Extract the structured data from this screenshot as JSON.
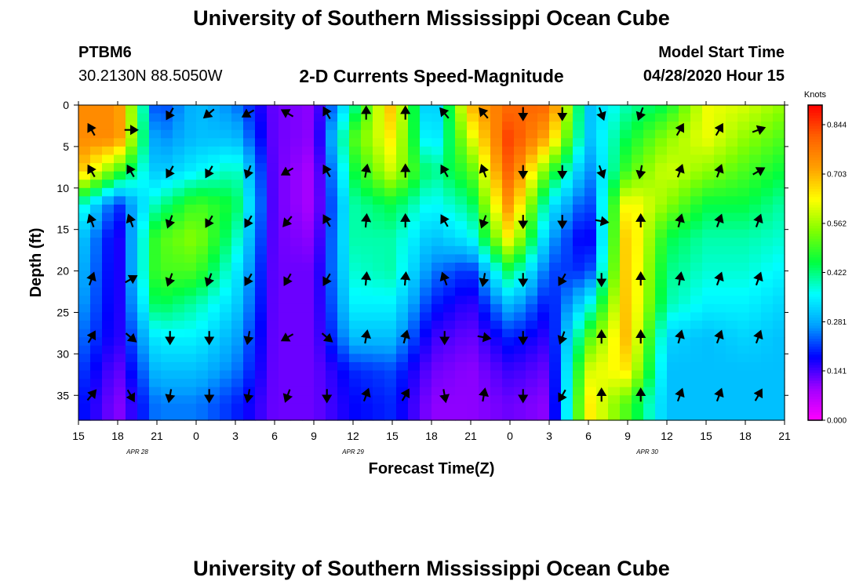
{
  "header": {
    "title": "University of Southern Mississippi Ocean Cube",
    "station": "PTBM6",
    "location": "30.2130N 88.5050W",
    "plot_title": "2-D Currents Speed-Magnitude",
    "model_start_label": "Model Start Time",
    "model_start_value": "04/28/2020 Hour 15"
  },
  "footer": {
    "title": "University of Southern Mississippi Ocean Cube"
  },
  "colorbar": {
    "unit": "Knots",
    "stops": [
      "#ff00ff",
      "#a000ff",
      "#0000ff",
      "#00a0ff",
      "#00ffff",
      "#00ff40",
      "#80ff00",
      "#ffff00",
      "#ffa000",
      "#ff6000",
      "#ff0000"
    ],
    "tick_labels": [
      "0.000",
      "0.141",
      "0.281",
      "0.422",
      "0.562",
      "0.703",
      "0.844"
    ],
    "max_value": 0.9
  },
  "chart_data": {
    "type": "heatmap",
    "title": "2-D Currents Speed-Magnitude",
    "xlabel": "Forecast Time(Z)",
    "ylabel": "Depth (ft)",
    "unit": "Knots",
    "x_start_hour": 15,
    "x_end_hour": 69,
    "xlim": [
      15,
      69
    ],
    "ylim": [
      0,
      38
    ],
    "x_tick_labels": [
      "15",
      "18",
      "21",
      "0",
      "3",
      "6",
      "9",
      "12",
      "15",
      "18",
      "21",
      "0",
      "3",
      "6",
      "9",
      "12",
      "15",
      "18",
      "21"
    ],
    "y_ticks": [
      0,
      5,
      10,
      15,
      20,
      25,
      30,
      35
    ],
    "y_tick_labels": [
      "0",
      "5",
      "10",
      "15",
      "20",
      "25",
      "30",
      "35"
    ],
    "date_labels": [
      {
        "text": "APR  28",
        "hour": 19.5
      },
      {
        "text": "APR  29",
        "hour": 36
      },
      {
        "text": "APR  30",
        "hour": 58.5
      }
    ],
    "depths_ft": [
      0,
      4,
      8,
      12,
      16,
      20,
      24,
      28,
      32,
      36
    ],
    "columns": [
      {
        "hour": 15,
        "speed": [
          0.75,
          0.75,
          0.7,
          0.4,
          0.32,
          0.3,
          0.28,
          0.25,
          0.22,
          0.2
        ]
      },
      {
        "hour": 18,
        "speed": [
          0.75,
          0.75,
          0.5,
          0.2,
          0.15,
          0.15,
          0.15,
          0.15,
          0.12,
          0.1
        ]
      },
      {
        "hour": 21,
        "speed": [
          0.2,
          0.25,
          0.3,
          0.4,
          0.5,
          0.5,
          0.45,
          0.35,
          0.3,
          0.25
        ]
      },
      {
        "hour": 24,
        "speed": [
          0.3,
          0.3,
          0.35,
          0.5,
          0.55,
          0.5,
          0.4,
          0.35,
          0.3,
          0.25
        ]
      },
      {
        "hour": 27,
        "speed": [
          0.25,
          0.3,
          0.4,
          0.45,
          0.4,
          0.35,
          0.32,
          0.28,
          0.25,
          0.2
        ]
      },
      {
        "hour": 30,
        "speed": [
          0.12,
          0.12,
          0.12,
          0.12,
          0.12,
          0.12,
          0.12,
          0.12,
          0.12,
          0.12
        ]
      },
      {
        "hour": 33,
        "speed": [
          0.1,
          0.1,
          0.08,
          0.08,
          0.1,
          0.12,
          0.12,
          0.12,
          0.12,
          0.12
        ]
      },
      {
        "hour": 36,
        "speed": [
          0.4,
          0.5,
          0.45,
          0.4,
          0.4,
          0.38,
          0.35,
          0.3,
          0.2,
          0.18
        ]
      },
      {
        "hour": 39,
        "speed": [
          0.7,
          0.65,
          0.6,
          0.45,
          0.4,
          0.4,
          0.35,
          0.3,
          0.22,
          0.2
        ]
      },
      {
        "hour": 42,
        "speed": [
          0.25,
          0.3,
          0.4,
          0.35,
          0.3,
          0.25,
          0.2,
          0.15,
          0.12,
          0.1
        ]
      },
      {
        "hour": 45,
        "speed": [
          0.7,
          0.6,
          0.5,
          0.42,
          0.35,
          0.2,
          0.15,
          0.12,
          0.1,
          0.1
        ]
      },
      {
        "hour": 48,
        "speed": [
          0.8,
          0.85,
          0.82,
          0.75,
          0.65,
          0.45,
          0.3,
          0.2,
          0.15,
          0.12
        ]
      },
      {
        "hour": 51,
        "speed": [
          0.8,
          0.7,
          0.5,
          0.35,
          0.28,
          0.22,
          0.18,
          0.15,
          0.12,
          0.1
        ]
      },
      {
        "hour": 54,
        "speed": [
          0.3,
          0.3,
          0.25,
          0.2,
          0.15,
          0.2,
          0.35,
          0.5,
          0.6,
          0.65
        ]
      },
      {
        "hour": 57,
        "speed": [
          0.4,
          0.45,
          0.5,
          0.65,
          0.7,
          0.7,
          0.7,
          0.7,
          0.65,
          0.5
        ]
      },
      {
        "hour": 60,
        "speed": [
          0.45,
          0.55,
          0.6,
          0.55,
          0.45,
          0.42,
          0.4,
          0.32,
          0.3,
          0.3
        ]
      },
      {
        "hour": 63,
        "speed": [
          0.62,
          0.62,
          0.55,
          0.45,
          0.4,
          0.38,
          0.35,
          0.3,
          0.3,
          0.3
        ]
      },
      {
        "hour": 66,
        "speed": [
          0.6,
          0.55,
          0.5,
          0.45,
          0.4,
          0.38,
          0.35,
          0.32,
          0.3,
          0.3
        ]
      },
      {
        "hour": 69,
        "speed": [
          0.55,
          0.5,
          0.45,
          0.4,
          0.38,
          0.35,
          0.32,
          0.3,
          0.3,
          0.3
        ]
      }
    ],
    "arrows": [
      {
        "hour": 16,
        "depth": 3,
        "dir_deg": 330
      },
      {
        "hour": 19,
        "depth": 3,
        "dir_deg": 90
      },
      {
        "hour": 22,
        "depth": 1,
        "dir_deg": 210
      },
      {
        "hour": 25,
        "depth": 1,
        "dir_deg": 230
      },
      {
        "hour": 28,
        "depth": 1,
        "dir_deg": 240
      },
      {
        "hour": 31,
        "depth": 1,
        "dir_deg": 300
      },
      {
        "hour": 34,
        "depth": 1,
        "dir_deg": 330
      },
      {
        "hour": 37,
        "depth": 1,
        "dir_deg": 0
      },
      {
        "hour": 40,
        "depth": 1,
        "dir_deg": 0
      },
      {
        "hour": 43,
        "depth": 1,
        "dir_deg": 320
      },
      {
        "hour": 46,
        "depth": 1,
        "dir_deg": 320
      },
      {
        "hour": 49,
        "depth": 1,
        "dir_deg": 180
      },
      {
        "hour": 52,
        "depth": 1,
        "dir_deg": 180
      },
      {
        "hour": 55,
        "depth": 1,
        "dir_deg": 160
      },
      {
        "hour": 58,
        "depth": 1,
        "dir_deg": 200
      },
      {
        "hour": 61,
        "depth": 3,
        "dir_deg": 30
      },
      {
        "hour": 64,
        "depth": 3,
        "dir_deg": 30
      },
      {
        "hour": 67,
        "depth": 3,
        "dir_deg": 70
      },
      {
        "hour": 16,
        "depth": 8,
        "dir_deg": 330
      },
      {
        "hour": 19,
        "depth": 8,
        "dir_deg": 330
      },
      {
        "hour": 22,
        "depth": 8,
        "dir_deg": 210
      },
      {
        "hour": 25,
        "depth": 8,
        "dir_deg": 210
      },
      {
        "hour": 28,
        "depth": 8,
        "dir_deg": 200
      },
      {
        "hour": 31,
        "depth": 8,
        "dir_deg": 240
      },
      {
        "hour": 34,
        "depth": 8,
        "dir_deg": 330
      },
      {
        "hour": 37,
        "depth": 8,
        "dir_deg": 10
      },
      {
        "hour": 40,
        "depth": 8,
        "dir_deg": 0
      },
      {
        "hour": 43,
        "depth": 8,
        "dir_deg": 330
      },
      {
        "hour": 46,
        "depth": 8,
        "dir_deg": 340
      },
      {
        "hour": 49,
        "depth": 8,
        "dir_deg": 180
      },
      {
        "hour": 52,
        "depth": 8,
        "dir_deg": 180
      },
      {
        "hour": 55,
        "depth": 8,
        "dir_deg": 160
      },
      {
        "hour": 58,
        "depth": 8,
        "dir_deg": 190
      },
      {
        "hour": 61,
        "depth": 8,
        "dir_deg": 20
      },
      {
        "hour": 64,
        "depth": 8,
        "dir_deg": 20
      },
      {
        "hour": 67,
        "depth": 8,
        "dir_deg": 60
      },
      {
        "hour": 16,
        "depth": 14,
        "dir_deg": 340
      },
      {
        "hour": 19,
        "depth": 14,
        "dir_deg": 340
      },
      {
        "hour": 22,
        "depth": 14,
        "dir_deg": 200
      },
      {
        "hour": 25,
        "depth": 14,
        "dir_deg": 210
      },
      {
        "hour": 28,
        "depth": 14,
        "dir_deg": 210
      },
      {
        "hour": 31,
        "depth": 14,
        "dir_deg": 220
      },
      {
        "hour": 34,
        "depth": 14,
        "dir_deg": 330
      },
      {
        "hour": 37,
        "depth": 14,
        "dir_deg": 5
      },
      {
        "hour": 40,
        "depth": 14,
        "dir_deg": 0
      },
      {
        "hour": 43,
        "depth": 14,
        "dir_deg": 330
      },
      {
        "hour": 46,
        "depth": 14,
        "dir_deg": 200
      },
      {
        "hour": 49,
        "depth": 14,
        "dir_deg": 180
      },
      {
        "hour": 52,
        "depth": 14,
        "dir_deg": 180
      },
      {
        "hour": 55,
        "depth": 14,
        "dir_deg": 100
      },
      {
        "hour": 58,
        "depth": 14,
        "dir_deg": 0
      },
      {
        "hour": 61,
        "depth": 14,
        "dir_deg": 15
      },
      {
        "hour": 64,
        "depth": 14,
        "dir_deg": 20
      },
      {
        "hour": 67,
        "depth": 14,
        "dir_deg": 20
      },
      {
        "hour": 16,
        "depth": 21,
        "dir_deg": 20
      },
      {
        "hour": 19,
        "depth": 21,
        "dir_deg": 60
      },
      {
        "hour": 22,
        "depth": 21,
        "dir_deg": 200
      },
      {
        "hour": 25,
        "depth": 21,
        "dir_deg": 200
      },
      {
        "hour": 28,
        "depth": 21,
        "dir_deg": 210
      },
      {
        "hour": 31,
        "depth": 21,
        "dir_deg": 210
      },
      {
        "hour": 34,
        "depth": 21,
        "dir_deg": 210
      },
      {
        "hour": 37,
        "depth": 21,
        "dir_deg": 5
      },
      {
        "hour": 40,
        "depth": 21,
        "dir_deg": 5
      },
      {
        "hour": 43,
        "depth": 21,
        "dir_deg": 340
      },
      {
        "hour": 46,
        "depth": 21,
        "dir_deg": 190
      },
      {
        "hour": 49,
        "depth": 21,
        "dir_deg": 180
      },
      {
        "hour": 52,
        "depth": 21,
        "dir_deg": 210
      },
      {
        "hour": 55,
        "depth": 21,
        "dir_deg": 180
      },
      {
        "hour": 58,
        "depth": 21,
        "dir_deg": 0
      },
      {
        "hour": 61,
        "depth": 21,
        "dir_deg": 10
      },
      {
        "hour": 64,
        "depth": 21,
        "dir_deg": 20
      },
      {
        "hour": 67,
        "depth": 21,
        "dir_deg": 20
      },
      {
        "hour": 16,
        "depth": 28,
        "dir_deg": 30
      },
      {
        "hour": 19,
        "depth": 28,
        "dir_deg": 130
      },
      {
        "hour": 22,
        "depth": 28,
        "dir_deg": 180
      },
      {
        "hour": 25,
        "depth": 28,
        "dir_deg": 180
      },
      {
        "hour": 28,
        "depth": 28,
        "dir_deg": 190
      },
      {
        "hour": 31,
        "depth": 28,
        "dir_deg": 240
      },
      {
        "hour": 34,
        "depth": 28,
        "dir_deg": 130
      },
      {
        "hour": 37,
        "depth": 28,
        "dir_deg": 10
      },
      {
        "hour": 40,
        "depth": 28,
        "dir_deg": 15
      },
      {
        "hour": 43,
        "depth": 28,
        "dir_deg": 180
      },
      {
        "hour": 46,
        "depth": 28,
        "dir_deg": 100
      },
      {
        "hour": 49,
        "depth": 28,
        "dir_deg": 180
      },
      {
        "hour": 52,
        "depth": 28,
        "dir_deg": 200
      },
      {
        "hour": 55,
        "depth": 28,
        "dir_deg": 0
      },
      {
        "hour": 58,
        "depth": 28,
        "dir_deg": 0
      },
      {
        "hour": 61,
        "depth": 28,
        "dir_deg": 15
      },
      {
        "hour": 64,
        "depth": 28,
        "dir_deg": 20
      },
      {
        "hour": 67,
        "depth": 28,
        "dir_deg": 20
      },
      {
        "hour": 16,
        "depth": 35,
        "dir_deg": 40
      },
      {
        "hour": 19,
        "depth": 35,
        "dir_deg": 150
      },
      {
        "hour": 22,
        "depth": 35,
        "dir_deg": 190
      },
      {
        "hour": 25,
        "depth": 35,
        "dir_deg": 180
      },
      {
        "hour": 28,
        "depth": 35,
        "dir_deg": 190
      },
      {
        "hour": 31,
        "depth": 35,
        "dir_deg": 200
      },
      {
        "hour": 34,
        "depth": 35,
        "dir_deg": 180
      },
      {
        "hour": 37,
        "depth": 35,
        "dir_deg": 20
      },
      {
        "hour": 40,
        "depth": 35,
        "dir_deg": 30
      },
      {
        "hour": 43,
        "depth": 35,
        "dir_deg": 170
      },
      {
        "hour": 46,
        "depth": 35,
        "dir_deg": 10
      },
      {
        "hour": 49,
        "depth": 35,
        "dir_deg": 180
      },
      {
        "hour": 52,
        "depth": 35,
        "dir_deg": 210
      },
      {
        "hour": 55,
        "depth": 35,
        "dir_deg": 0
      },
      {
        "hour": 58,
        "depth": 35,
        "dir_deg": 0
      },
      {
        "hour": 61,
        "depth": 35,
        "dir_deg": 20
      },
      {
        "hour": 64,
        "depth": 35,
        "dir_deg": 20
      },
      {
        "hour": 67,
        "depth": 35,
        "dir_deg": 30
      }
    ]
  }
}
